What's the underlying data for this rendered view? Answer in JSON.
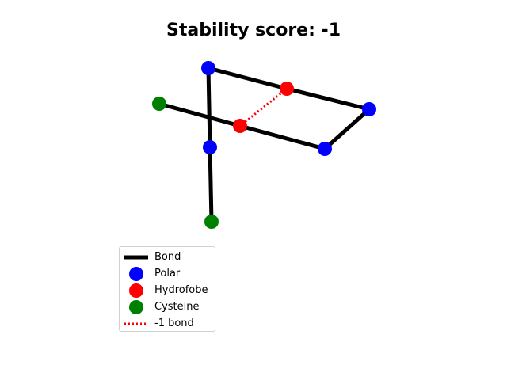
{
  "title": "Stability score: -1",
  "colors": {
    "bond": "#000000",
    "polar": "#0000ff",
    "hydrofobe": "#ff0000",
    "cysteine": "#008000",
    "minus_one_bond": "#ff0000"
  },
  "legend": [
    {
      "key": "bond",
      "label": "Bond",
      "marker": "line"
    },
    {
      "key": "polar",
      "label": "Polar",
      "marker": "dot"
    },
    {
      "key": "hydrofobe",
      "label": "Hydrofobe",
      "marker": "dot"
    },
    {
      "key": "cysteine",
      "label": "Cysteine",
      "marker": "dot"
    },
    {
      "key": "minus_one_bond",
      "label": "-1 bond",
      "marker": "dotted"
    }
  ],
  "chart_data": {
    "type": "diagram",
    "chain": [
      {
        "x": 0,
        "y": 0,
        "type": "cysteine"
      },
      {
        "x": 0,
        "y": 1,
        "type": "polar"
      },
      {
        "x": 0,
        "y": 2,
        "type": "polar"
      },
      {
        "x": 1,
        "y": 2,
        "type": "hydrofobe"
      },
      {
        "x": 2,
        "y": 2,
        "type": "polar"
      },
      {
        "x": 2,
        "y": 1,
        "type": "polar"
      },
      {
        "x": 1,
        "y": 1,
        "type": "hydrofobe"
      },
      {
        "x": -1,
        "y": 1,
        "type": "cysteine"
      }
    ],
    "minus_one_bonds": [
      [
        3,
        6
      ]
    ]
  }
}
